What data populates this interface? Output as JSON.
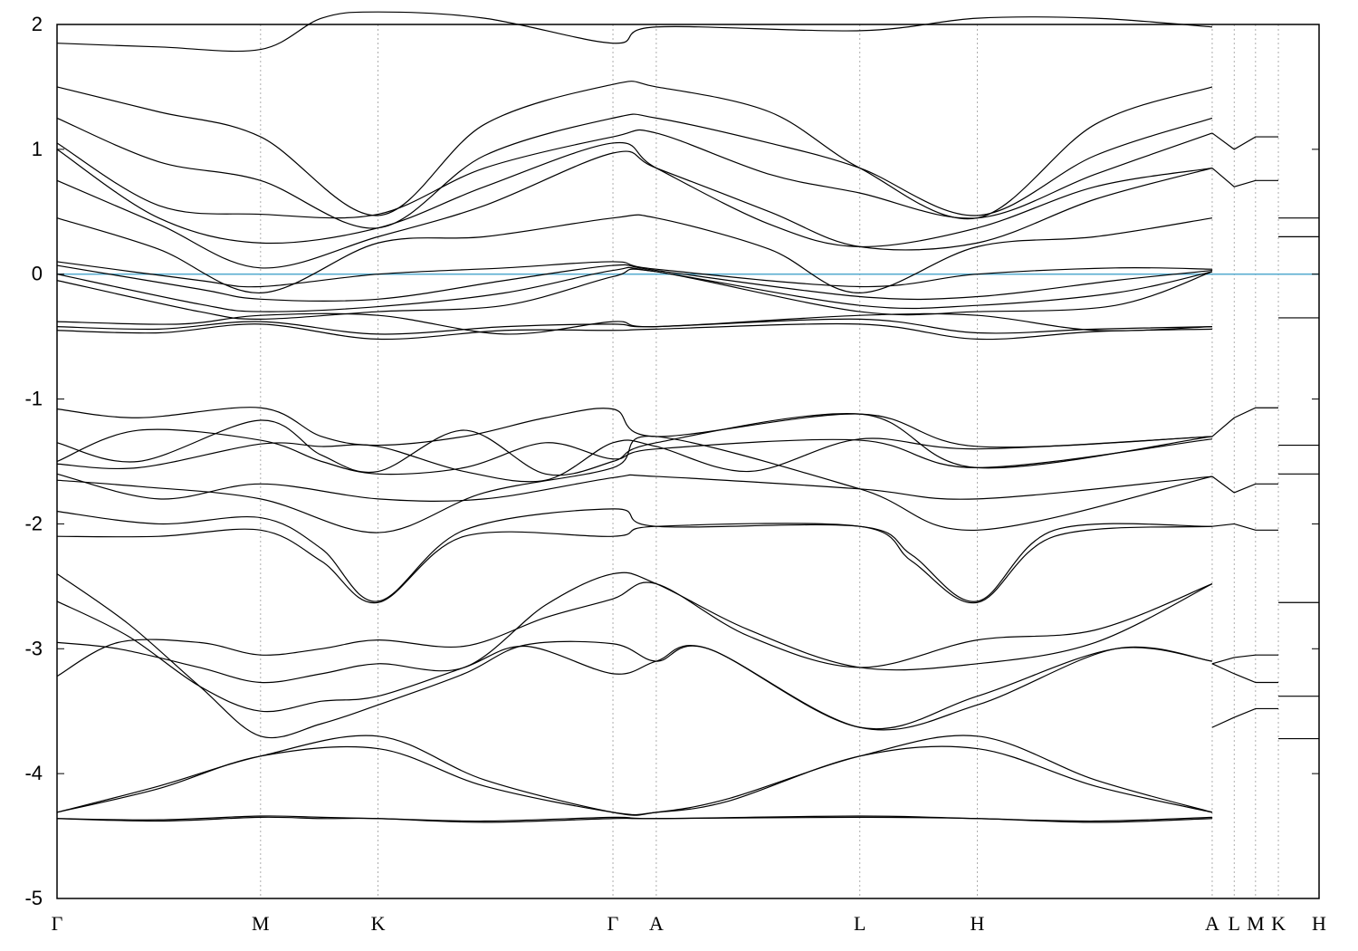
{
  "chart_data": {
    "type": "line",
    "title": "",
    "xlabel": "",
    "ylabel": "",
    "ylim": [
      -5,
      2
    ],
    "yticks": [
      -5,
      -4,
      -3,
      -2,
      -1,
      0,
      1,
      2
    ],
    "kpoints": [
      {
        "label": "Γ",
        "x": 0.0
      },
      {
        "label": "M",
        "x": 1.0
      },
      {
        "label": "K",
        "x": 1.577
      },
      {
        "label": "Γ",
        "x": 2.731
      },
      {
        "label": "A",
        "x": 2.944
      },
      {
        "label": "L",
        "x": 3.944
      },
      {
        "label": "H",
        "x": 4.521
      },
      {
        "label": "A",
        "x": 5.675
      },
      {
        "label": "L",
        "x": 5.783
      },
      {
        "label": "M",
        "x": 5.888
      },
      {
        "label": "K",
        "x": 6.0
      },
      {
        "label": "H",
        "x": 6.2
      }
    ],
    "fermi_level": 0,
    "fermi_color": "#5aaed0",
    "line_color": "#000000",
    "grid": "vertical dashed at k-points",
    "legend": "none",
    "series": [
      {
        "x": [
          0,
          0.5,
          1.0,
          1.3,
          1.577,
          2.1,
          2.731,
          2.944,
          3.944,
          4.521,
          5.1,
          5.675
        ],
        "values": [
          -4.36,
          -4.38,
          -4.35,
          -4.36,
          -4.36,
          -4.39,
          -4.36,
          -4.36,
          -4.35,
          -4.36,
          -4.39,
          -4.36
        ]
      },
      {
        "x": [
          0,
          0.5,
          1.0,
          1.3,
          1.577,
          2.1,
          2.731,
          2.944,
          3.944,
          4.521,
          5.1,
          5.675
        ],
        "values": [
          -4.36,
          -4.37,
          -4.34,
          -4.35,
          -4.36,
          -4.38,
          -4.35,
          -4.36,
          -4.34,
          -4.36,
          -4.38,
          -4.35
        ]
      },
      {
        "x": [
          0,
          0.5,
          1.0,
          1.577,
          2.1,
          2.731,
          2.944,
          3.3,
          3.944,
          4.521,
          5.1,
          5.675
        ],
        "values": [
          -4.31,
          -4.1,
          -3.86,
          -3.7,
          -4.05,
          -4.31,
          -4.31,
          -4.2,
          -3.86,
          -3.7,
          -4.05,
          -4.31
        ]
      },
      {
        "x": [
          0,
          0.5,
          1.0,
          1.577,
          2.1,
          2.731,
          2.944,
          3.3,
          3.944,
          4.521,
          5.1,
          5.675
        ],
        "values": [
          -4.31,
          -4.12,
          -3.86,
          -3.8,
          -4.1,
          -4.31,
          -4.31,
          -4.22,
          -3.86,
          -3.8,
          -4.1,
          -4.31
        ]
      },
      {
        "x": [
          0,
          0.35,
          0.7,
          1.0,
          1.3,
          1.577,
          2.0,
          2.3,
          2.731,
          2.944,
          3.2,
          3.944,
          4.521,
          5.2,
          5.675
        ],
        "values": [
          -2.4,
          -2.8,
          -3.3,
          -3.7,
          -3.6,
          -3.45,
          -3.2,
          -2.97,
          -2.96,
          -3.1,
          -3.0,
          -3.63,
          -3.45,
          -3.0,
          -3.1
        ]
      },
      {
        "x": [
          0,
          0.35,
          0.7,
          1.0,
          1.3,
          1.577,
          2.0,
          2.3,
          2.731,
          2.944,
          3.2,
          3.944,
          4.521,
          5.2,
          5.675
        ],
        "values": [
          -2.62,
          -2.9,
          -3.3,
          -3.5,
          -3.42,
          -3.38,
          -3.15,
          -2.98,
          -3.2,
          -3.1,
          -3.0,
          -3.63,
          -3.38,
          -3.0,
          -3.1
        ]
      },
      {
        "x": [
          0,
          0.3,
          0.7,
          1.0,
          1.3,
          1.577,
          2.0,
          2.4,
          2.731,
          2.944,
          3.4,
          3.944,
          4.521,
          5.1,
          5.675
        ],
        "values": [
          -2.95,
          -3.0,
          -3.15,
          -3.27,
          -3.2,
          -3.12,
          -3.15,
          -2.65,
          -2.4,
          -2.48,
          -2.85,
          -3.15,
          -3.12,
          -2.95,
          -2.48
        ]
      },
      {
        "x": [
          0,
          0.3,
          0.7,
          1.0,
          1.3,
          1.577,
          2.0,
          2.4,
          2.731,
          2.944,
          3.4,
          3.944,
          4.521,
          5.1,
          5.675
        ],
        "values": [
          -3.22,
          -2.95,
          -2.95,
          -3.05,
          -3.0,
          -2.93,
          -2.98,
          -2.75,
          -2.6,
          -2.48,
          -2.9,
          -3.15,
          -2.93,
          -2.85,
          -2.48
        ]
      },
      {
        "x": [
          0,
          0.5,
          1.0,
          1.3,
          1.577,
          2.0,
          2.731,
          2.944,
          3.944,
          4.2,
          4.521,
          4.9,
          5.675
        ],
        "values": [
          -2.1,
          -2.1,
          -2.05,
          -2.3,
          -2.63,
          -2.1,
          -2.1,
          -2.02,
          -2.02,
          -2.3,
          -2.63,
          -2.1,
          -2.02
        ]
      },
      {
        "x": [
          0,
          0.5,
          1.0,
          1.3,
          1.577,
          2.0,
          2.731,
          2.944,
          3.944,
          4.2,
          4.521,
          4.9,
          5.675
        ],
        "values": [
          -1.9,
          -2.0,
          -1.95,
          -2.2,
          -2.62,
          -2.05,
          -1.88,
          -2.02,
          -2.02,
          -2.25,
          -2.62,
          -2.05,
          -2.02
        ]
      },
      {
        "x": [
          0,
          0.5,
          1.0,
          1.577,
          2.1,
          2.731,
          2.944,
          3.944,
          4.521,
          5.675
        ],
        "values": [
          -1.6,
          -1.8,
          -1.68,
          -1.8,
          -1.8,
          -1.63,
          -1.62,
          -1.72,
          -1.8,
          -1.62
        ]
      },
      {
        "x": [
          0,
          0.4,
          1.0,
          1.577,
          2.1,
          2.731,
          2.944,
          3.944,
          4.521,
          5.675
        ],
        "values": [
          -1.65,
          -1.7,
          -1.8,
          -2.07,
          -1.75,
          -1.55,
          -1.3,
          -1.72,
          -2.05,
          -1.62
        ]
      },
      {
        "x": [
          0,
          0.4,
          1.0,
          1.3,
          1.577,
          2.0,
          2.4,
          2.731,
          2.944,
          3.944,
          4.521,
          5.675
        ],
        "values": [
          -1.08,
          -1.15,
          -1.07,
          -1.3,
          -1.37,
          -1.3,
          -1.15,
          -1.08,
          -1.3,
          -1.12,
          -1.38,
          -1.3
        ]
      },
      {
        "x": [
          0,
          0.4,
          1.0,
          1.3,
          1.577,
          2.0,
          2.4,
          2.731,
          2.944,
          3.944,
          4.521,
          5.675
        ],
        "values": [
          -1.35,
          -1.5,
          -1.17,
          -1.45,
          -1.58,
          -1.25,
          -1.6,
          -1.5,
          -1.35,
          -1.12,
          -1.55,
          -1.3
        ]
      },
      {
        "x": [
          0,
          0.4,
          1.0,
          1.3,
          1.577,
          2.0,
          2.4,
          2.731,
          2.944,
          3.944,
          4.521,
          5.675
        ],
        "values": [
          -1.5,
          -1.25,
          -1.33,
          -1.5,
          -1.6,
          -1.55,
          -1.35,
          -1.48,
          -1.4,
          -1.33,
          -1.55,
          -1.32
        ]
      },
      {
        "x": [
          0,
          0.4,
          1.0,
          1.3,
          1.577,
          2.0,
          2.4,
          2.731,
          2.944,
          3.4,
          3.944,
          4.521,
          5.675
        ],
        "values": [
          -1.52,
          -1.55,
          -1.36,
          -1.38,
          -1.38,
          -1.58,
          -1.65,
          -1.35,
          -1.38,
          -1.58,
          -1.32,
          -1.4,
          -1.3
        ]
      },
      {
        "x": [
          0,
          0.5,
          1.0,
          1.577,
          2.2,
          2.731,
          2.944,
          3.944,
          4.521,
          5.1,
          5.675
        ],
        "values": [
          -0.45,
          -0.47,
          -0.4,
          -0.52,
          -0.45,
          -0.45,
          -0.44,
          -0.4,
          -0.52,
          -0.46,
          -0.44
        ]
      },
      {
        "x": [
          0,
          0.5,
          1.0,
          1.577,
          2.2,
          2.731,
          2.944,
          3.944,
          4.521,
          5.1,
          5.675
        ],
        "values": [
          -0.42,
          -0.44,
          -0.38,
          -0.48,
          -0.42,
          -0.4,
          -0.42,
          -0.36,
          -0.47,
          -0.44,
          -0.42
        ]
      },
      {
        "x": [
          0,
          0.6,
          1.0,
          1.577,
          2.2,
          2.731,
          2.944,
          3.944,
          4.521,
          5.1,
          5.675
        ],
        "values": [
          -0.38,
          -0.4,
          -0.33,
          -0.33,
          -0.48,
          -0.38,
          -0.42,
          -0.33,
          -0.33,
          -0.45,
          -0.42
        ]
      },
      {
        "x": [
          0,
          0.7,
          1.0,
          1.577,
          2.2,
          2.731,
          2.944,
          3.944,
          4.521,
          5.2,
          5.675
        ],
        "values": [
          -0.05,
          -0.3,
          -0.36,
          -0.3,
          -0.25,
          -0.02,
          0.02,
          -0.3,
          -0.3,
          -0.25,
          0.02
        ]
      },
      {
        "x": [
          0,
          0.7,
          1.0,
          1.577,
          2.2,
          2.731,
          2.944,
          3.944,
          4.521,
          5.2,
          5.675
        ],
        "values": [
          0.0,
          -0.24,
          -0.3,
          -0.26,
          -0.15,
          0.03,
          0.02,
          -0.25,
          -0.25,
          -0.15,
          0.02
        ]
      },
      {
        "x": [
          0,
          0.7,
          1.0,
          1.577,
          2.2,
          2.731,
          2.944,
          3.944,
          4.521,
          5.2,
          5.675
        ],
        "values": [
          0.07,
          -0.12,
          -0.2,
          -0.2,
          -0.05,
          0.07,
          0.03,
          -0.18,
          -0.18,
          -0.05,
          0.03
        ]
      },
      {
        "x": [
          0,
          0.7,
          1.0,
          1.577,
          2.2,
          2.731,
          2.944,
          3.944,
          4.521,
          5.2,
          5.675
        ],
        "values": [
          0.1,
          -0.05,
          -0.1,
          0.0,
          0.05,
          0.1,
          0.04,
          -0.1,
          0.0,
          0.05,
          0.04
        ]
      },
      {
        "x": [
          0,
          0.5,
          1.0,
          1.577,
          2.1,
          2.731,
          2.944,
          3.5,
          3.944,
          4.521,
          5.1,
          5.675
        ],
        "values": [
          0.45,
          0.2,
          -0.15,
          0.25,
          0.3,
          0.45,
          0.45,
          0.2,
          -0.15,
          0.22,
          0.3,
          0.45
        ]
      },
      {
        "x": [
          0,
          0.5,
          1.0,
          1.577,
          2.1,
          2.731,
          2.944,
          3.5,
          3.944,
          4.521,
          5.1,
          5.675
        ],
        "values": [
          0.75,
          0.4,
          0.05,
          0.3,
          0.55,
          0.97,
          0.85,
          0.5,
          0.22,
          0.25,
          0.6,
          0.85
        ]
      },
      {
        "x": [
          0,
          0.5,
          1.0,
          1.577,
          2.1,
          2.731,
          2.944,
          3.5,
          3.944,
          4.521,
          5.1,
          5.675
        ],
        "values": [
          1.0,
          0.45,
          0.25,
          0.37,
          0.7,
          1.05,
          0.85,
          0.4,
          0.22,
          0.37,
          0.7,
          0.85
        ]
      },
      {
        "x": [
          0,
          0.5,
          1.0,
          1.577,
          2.1,
          2.731,
          2.944,
          3.5,
          3.944,
          4.521,
          5.1,
          5.675
        ],
        "values": [
          1.05,
          0.55,
          0.48,
          0.48,
          0.85,
          1.1,
          1.13,
          0.8,
          0.65,
          0.45,
          0.8,
          1.13
        ]
      },
      {
        "x": [
          0,
          0.5,
          1.0,
          1.577,
          2.1,
          2.731,
          2.944,
          3.5,
          3.944,
          4.521,
          5.1,
          5.675
        ],
        "values": [
          1.25,
          0.9,
          0.75,
          0.37,
          0.95,
          1.25,
          1.25,
          1.05,
          0.85,
          0.47,
          0.95,
          1.25
        ]
      },
      {
        "x": [
          0,
          0.5,
          1.0,
          1.577,
          2.1,
          2.731,
          2.944,
          3.5,
          3.944,
          4.521,
          5.1,
          5.675
        ],
        "values": [
          1.5,
          1.3,
          1.1,
          0.47,
          1.2,
          1.52,
          1.5,
          1.3,
          0.85,
          0.45,
          1.2,
          1.5
        ]
      },
      {
        "x": [
          0,
          0.5,
          1.0,
          1.3,
          1.577,
          2.1,
          2.731,
          2.944,
          3.944,
          4.521,
          5.1,
          5.675
        ],
        "values": [
          1.85,
          1.82,
          1.8,
          2.05,
          2.1,
          2.05,
          1.85,
          1.98,
          1.95,
          2.05,
          2.05,
          1.98
        ]
      }
    ],
    "right_segments": [
      {
        "x": [
          5.675,
          5.783,
          5.888,
          6.0
        ],
        "values": [
          -3.63,
          -3.55,
          -3.48,
          -3.48
        ]
      },
      {
        "x": [
          5.675,
          5.783,
          5.888,
          6.0
        ],
        "values": [
          -3.12,
          -3.2,
          -3.27,
          -3.27
        ]
      },
      {
        "x": [
          5.675,
          5.783,
          5.888,
          6.0
        ],
        "values": [
          -3.12,
          -3.07,
          -3.05,
          -3.05
        ]
      },
      {
        "x": [
          5.675,
          5.783,
          5.888,
          6.0
        ],
        "values": [
          -2.02,
          -2.0,
          -2.05,
          -2.05
        ]
      },
      {
        "x": [
          5.675,
          5.783,
          5.888,
          6.0
        ],
        "values": [
          -1.62,
          -1.75,
          -1.68,
          -1.68
        ]
      },
      {
        "x": [
          5.675,
          5.783,
          5.888,
          6.0
        ],
        "values": [
          -1.3,
          -1.15,
          -1.07,
          -1.07
        ]
      },
      {
        "x": [
          5.675,
          5.783,
          5.888,
          6.0
        ],
        "values": [
          0.85,
          0.7,
          0.75,
          0.75
        ]
      },
      {
        "x": [
          5.675,
          5.783,
          5.888,
          6.0
        ],
        "values": [
          1.13,
          1.0,
          1.1,
          1.1
        ]
      },
      {
        "x": [
          6.0,
          6.2
        ],
        "values": [
          -3.38,
          -3.38
        ]
      },
      {
        "x": [
          6.0,
          6.2
        ],
        "values": [
          -3.72,
          -3.72
        ]
      },
      {
        "x": [
          6.0,
          6.2
        ],
        "values": [
          -2.63,
          -2.63
        ]
      },
      {
        "x": [
          6.0,
          6.2
        ],
        "values": [
          -1.6,
          -1.6
        ]
      },
      {
        "x": [
          6.0,
          6.2
        ],
        "values": [
          -1.37,
          -1.37
        ]
      },
      {
        "x": [
          6.0,
          6.2
        ],
        "values": [
          0.45,
          0.45
        ]
      },
      {
        "x": [
          6.0,
          6.2
        ],
        "values": [
          0.3,
          0.3
        ]
      },
      {
        "x": [
          6.0,
          6.2
        ],
        "values": [
          -0.35,
          -0.35
        ]
      }
    ]
  }
}
